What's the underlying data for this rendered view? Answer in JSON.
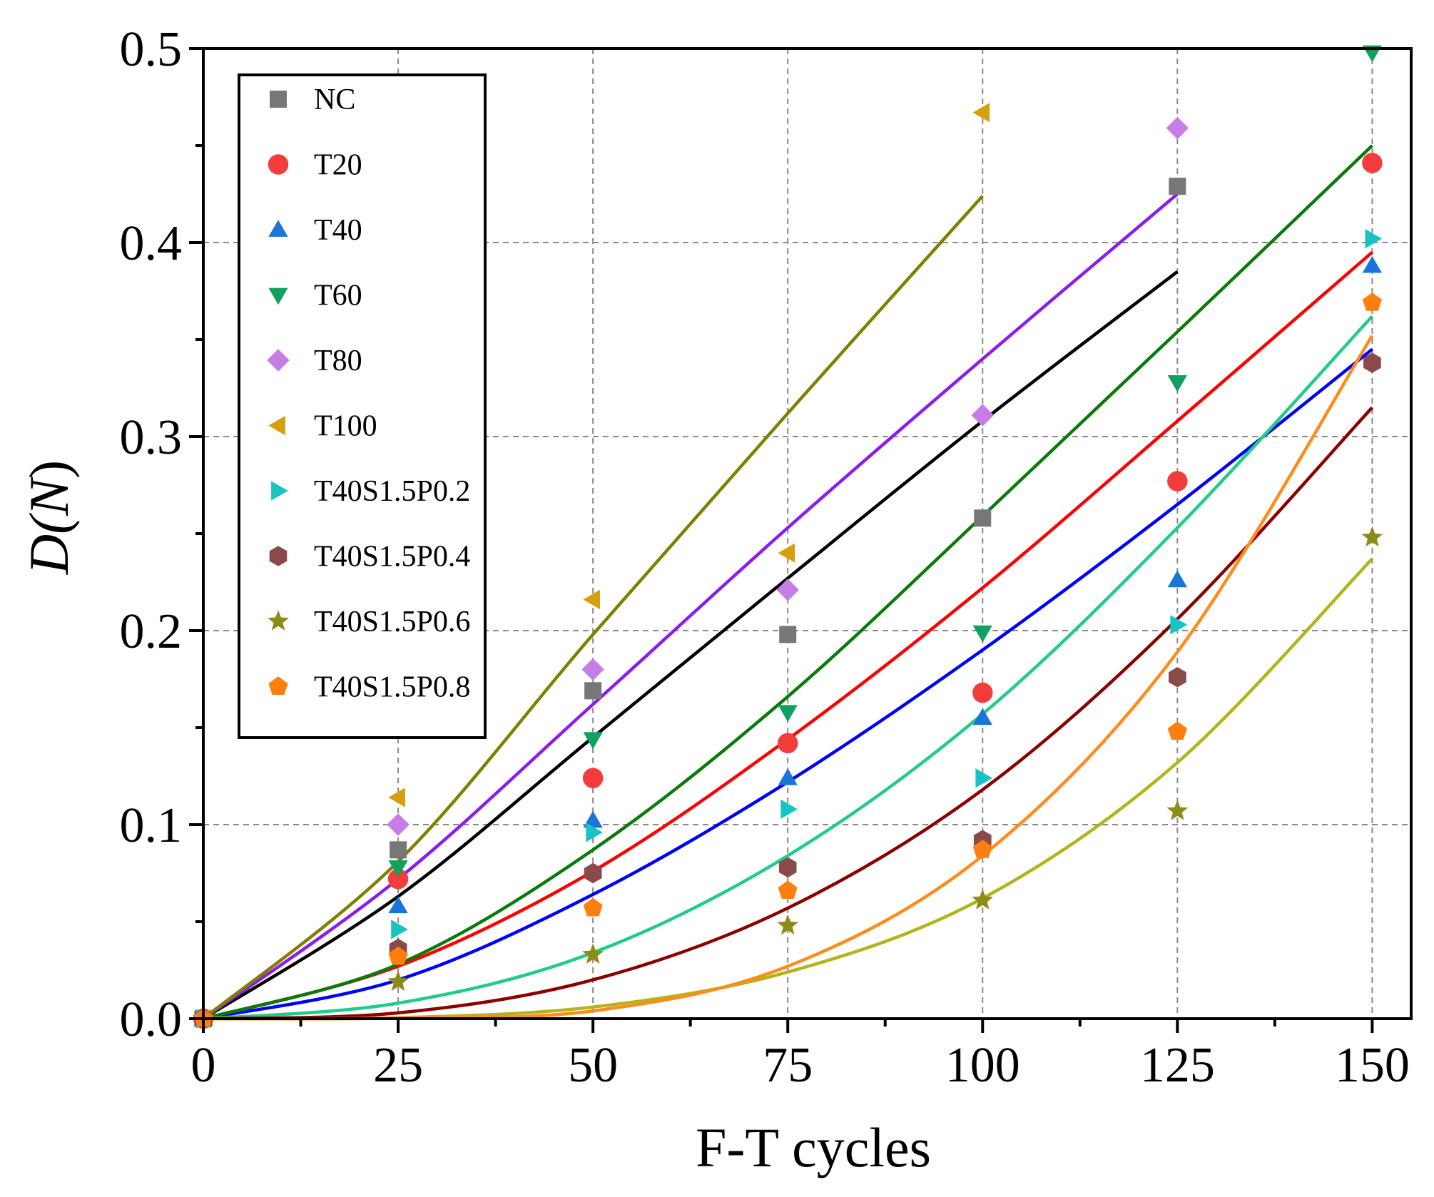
{
  "chart_data": {
    "type": "scatter",
    "title": "",
    "xlabel": "F-T cycles",
    "ylabel_prefix": "D(",
    "ylabel_var": "N",
    "ylabel_suffix": ")",
    "xlim": [
      0,
      155
    ],
    "ylim": [
      0,
      0.5
    ],
    "xticks": [
      0,
      25,
      50,
      75,
      100,
      125,
      150
    ],
    "xtick_labels": [
      "0",
      "25",
      "50",
      "75",
      "100",
      "125",
      "150"
    ],
    "yticks": [
      0.0,
      0.1,
      0.2,
      0.3,
      0.4,
      0.5
    ],
    "ytick_labels": [
      "0.0",
      "0.1",
      "0.2",
      "0.3",
      "0.4",
      "0.5"
    ],
    "grid": true,
    "legend_position": "top-left",
    "series": [
      {
        "name": "NC",
        "marker": "square",
        "color": "#777777",
        "fit_color": "#000000",
        "x": [
          0,
          25,
          50,
          75,
          100,
          125
        ],
        "y": [
          0.0,
          0.087,
          0.169,
          0.198,
          0.258,
          0.429
        ],
        "fit": {
          "x": [
            0,
            25,
            50,
            75,
            100,
            125
          ],
          "y": [
            0.0,
            0.063,
            0.145,
            0.227,
            0.308,
            0.385
          ]
        }
      },
      {
        "name": "T20",
        "marker": "circle",
        "color": "#f33c3c",
        "fit_color": "#ff0000",
        "x": [
          0,
          25,
          50,
          75,
          100,
          125,
          150
        ],
        "y": [
          0.0,
          0.072,
          0.124,
          0.142,
          0.168,
          0.277,
          0.441
        ],
        "fit": {
          "x": [
            0,
            25,
            50,
            75,
            100,
            125,
            150
          ],
          "y": [
            0.0,
            0.027,
            0.076,
            0.144,
            0.222,
            0.308,
            0.395
          ]
        }
      },
      {
        "name": "T40",
        "marker": "triangle-up",
        "color": "#1b74d8",
        "fit_color": "#0000ff",
        "x": [
          0,
          25,
          50,
          75,
          100,
          125,
          150
        ],
        "y": [
          0.0,
          0.058,
          0.102,
          0.124,
          0.155,
          0.226,
          0.388
        ],
        "fit": {
          "x": [
            0,
            25,
            50,
            75,
            100,
            125,
            150
          ],
          "y": [
            0.0,
            0.02,
            0.064,
            0.122,
            0.19,
            0.265,
            0.345
          ]
        }
      },
      {
        "name": "T60",
        "marker": "triangle-down",
        "color": "#10a060",
        "fit_color": "#0a7a0a",
        "x": [
          0,
          25,
          50,
          75,
          100,
          125,
          150
        ],
        "y": [
          0.0,
          0.078,
          0.144,
          0.158,
          0.199,
          0.328,
          0.498
        ],
        "fit": {
          "x": [
            0,
            25,
            50,
            75,
            100,
            125,
            150
          ],
          "y": [
            0.0,
            0.028,
            0.087,
            0.166,
            0.259,
            0.354,
            0.45
          ]
        }
      },
      {
        "name": "T80",
        "marker": "diamond",
        "color": "#c77de6",
        "fit_color": "#8b1cf0",
        "x": [
          0,
          25,
          50,
          75,
          100,
          125
        ],
        "y": [
          0.0,
          0.1,
          0.18,
          0.221,
          0.311,
          0.459
        ],
        "fit": {
          "x": [
            0,
            25,
            50,
            75,
            100,
            125
          ],
          "y": [
            0.0,
            0.072,
            0.162,
            0.253,
            0.34,
            0.425
          ]
        }
      },
      {
        "name": "T100",
        "marker": "triangle-left",
        "color": "#d69f0e",
        "fit_color": "#7f7f00",
        "x": [
          0,
          25,
          50,
          75,
          100
        ],
        "y": [
          0.0,
          0.114,
          0.216,
          0.24,
          0.467
        ],
        "fit": {
          "x": [
            0,
            25,
            50,
            75,
            100
          ],
          "y": [
            0.0,
            0.081,
            0.198,
            0.312,
            0.424
          ]
        }
      },
      {
        "name": "T40S1.5P0.2",
        "marker": "triangle-right",
        "color": "#16c4c4",
        "fit_color": "#1fcc8a",
        "x": [
          0,
          25,
          50,
          75,
          100,
          125,
          150
        ],
        "y": [
          0.0,
          0.046,
          0.096,
          0.108,
          0.124,
          0.203,
          0.402
        ],
        "fit": {
          "x": [
            0,
            25,
            50,
            75,
            100,
            125,
            150
          ],
          "y": [
            0.0,
            0.008,
            0.034,
            0.084,
            0.157,
            0.253,
            0.362
          ]
        }
      },
      {
        "name": "T40S1.5P0.4",
        "marker": "hexagon",
        "color": "#8b4a4a",
        "fit_color": "#8b0000",
        "x": [
          0,
          25,
          50,
          75,
          100,
          125,
          150
        ],
        "y": [
          0.0,
          0.036,
          0.075,
          0.078,
          0.092,
          0.176,
          0.338
        ],
        "fit": {
          "x": [
            0,
            25,
            50,
            75,
            100,
            125,
            150
          ],
          "y": [
            0.0,
            0.003,
            0.02,
            0.057,
            0.118,
            0.206,
            0.315
          ]
        }
      },
      {
        "name": "T40S1.5P0.6",
        "marker": "star",
        "color": "#8c8c18",
        "fit_color": "#b3b31a",
        "x": [
          0,
          25,
          50,
          75,
          100,
          125,
          150
        ],
        "y": [
          0.0,
          0.019,
          0.033,
          0.048,
          0.061,
          0.107,
          0.248
        ],
        "fit": {
          "x": [
            0,
            25,
            50,
            75,
            100,
            125,
            150
          ],
          "y": [
            0.0,
            0.0005,
            0.006,
            0.024,
            0.062,
            0.132,
            0.237
          ]
        }
      },
      {
        "name": "T40S1.5P0.8",
        "marker": "pentagon",
        "color": "#ff7f0e",
        "fit_color": "#ff8c1a",
        "x": [
          0,
          25,
          50,
          75,
          100,
          125,
          150
        ],
        "y": [
          0.0,
          0.032,
          0.057,
          0.066,
          0.087,
          0.148,
          0.369
        ],
        "fit": {
          "x": [
            0,
            25,
            50,
            75,
            100,
            125,
            150
          ],
          "y": [
            0.0,
            0.0003,
            0.004,
            0.027,
            0.084,
            0.189,
            0.352
          ]
        }
      }
    ]
  }
}
